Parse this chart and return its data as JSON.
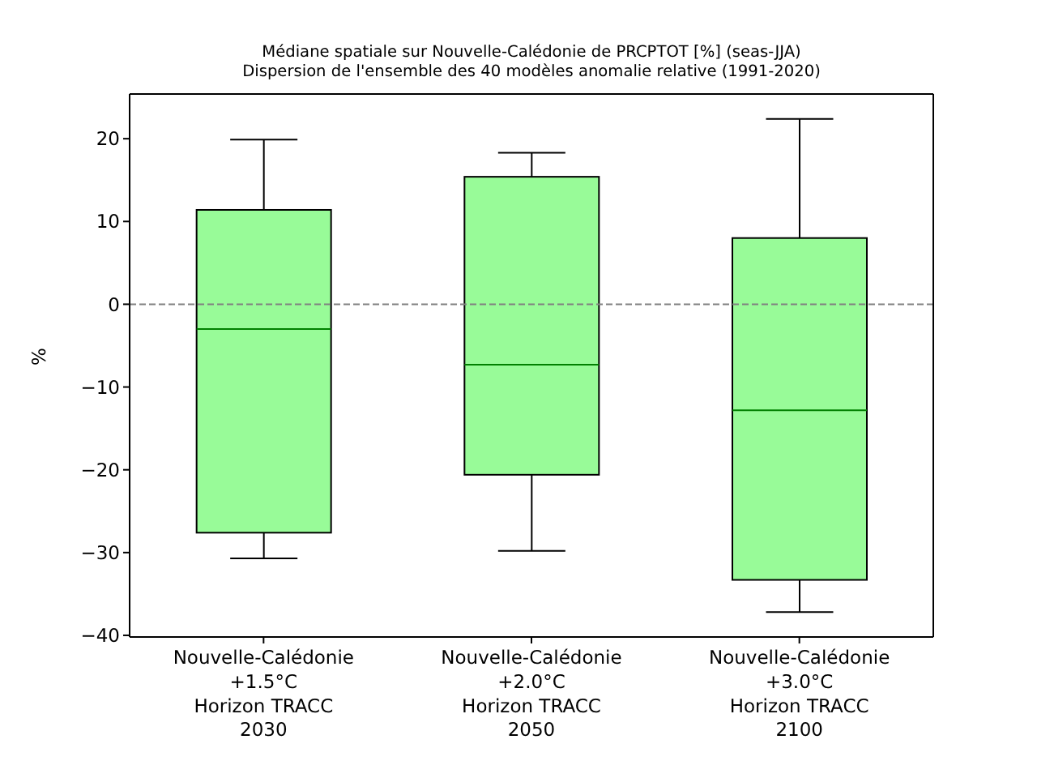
{
  "chart_data": {
    "type": "box",
    "title": "Médiane spatiale sur Nouvelle-Calédonie de PRCPTOT [%] (seas-JJA)",
    "subtitle": "Dispersion de l'ensemble des 40 modèles anomalie relative (1991-2020)",
    "ylabel": "%",
    "categories": [
      "Nouvelle-Calédonie\n+1.5°C\nHorizon TRACC\n2030",
      "Nouvelle-Calédonie\n+2.0°C\nHorizon TRACC\n2050",
      "Nouvelle-Calédonie\n+3.0°C\nHorizon TRACC\n2100"
    ],
    "color": "#98fb98",
    "boxes": [
      {
        "low": -30.7,
        "q1": -27.6,
        "median": -3.0,
        "q3": 11.4,
        "high": 19.9
      },
      {
        "low": -29.8,
        "q1": -20.6,
        "median": -7.3,
        "q3": 15.4,
        "high": 18.3
      },
      {
        "low": -37.2,
        "q1": -33.3,
        "median": -12.8,
        "q3": 8.0,
        "high": 22.4
      }
    ],
    "ylim": [
      -40.2,
      25.4
    ],
    "yticks": [
      -40,
      -30,
      -20,
      -10,
      0,
      10,
      20
    ],
    "ref_lines": [
      {
        "axis": "y",
        "value": 0,
        "color": "#808080",
        "line_style": "dashed"
      }
    ]
  }
}
